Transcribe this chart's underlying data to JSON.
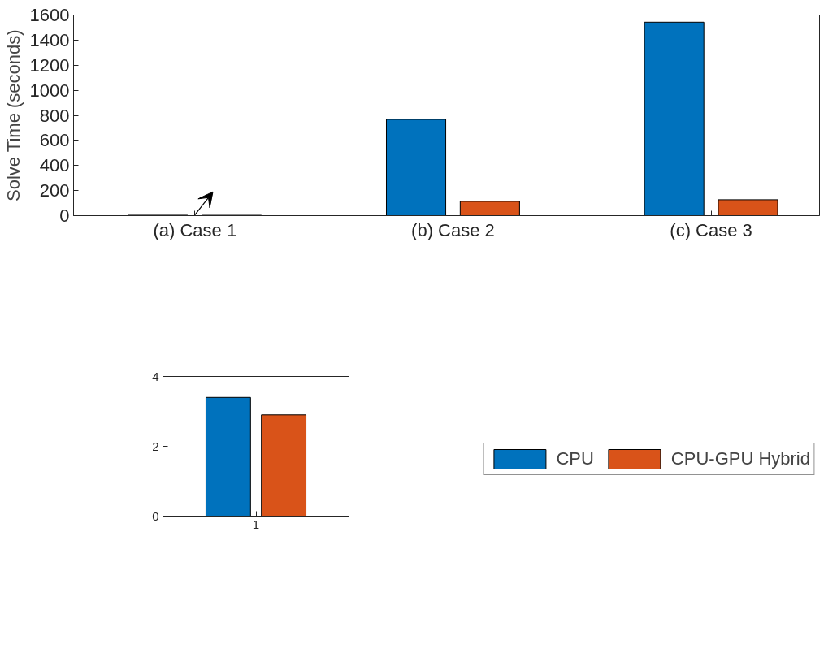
{
  "chart_data": [
    {
      "type": "bar",
      "ylabel": "Solve Time (seconds)",
      "categories": [
        "(a) Case 1",
        "(b) Case 2",
        "(c) Case 3"
      ],
      "series": [
        {
          "name": "CPU",
          "color": "#0072bd",
          "values": [
            3.4,
            768,
            1543
          ]
        },
        {
          "name": "CPU-GPU Hybrid",
          "color": "#d95319",
          "values": [
            2.9,
            114,
            127
          ]
        }
      ],
      "ylim": [
        0,
        1600
      ],
      "yticks": [
        0,
        200,
        400,
        600,
        800,
        1000,
        1200,
        1400,
        1600
      ],
      "grid": false,
      "legend": "bottom"
    },
    {
      "type": "bar",
      "categories": [
        "1"
      ],
      "series": [
        {
          "color": "#0072bd",
          "values": [
            3.4
          ]
        },
        {
          "color": "#d95319",
          "values": [
            2.9
          ]
        }
      ],
      "ylim": [
        0,
        4
      ],
      "yticks": [
        0,
        2,
        4
      ],
      "grid": false
    }
  ]
}
